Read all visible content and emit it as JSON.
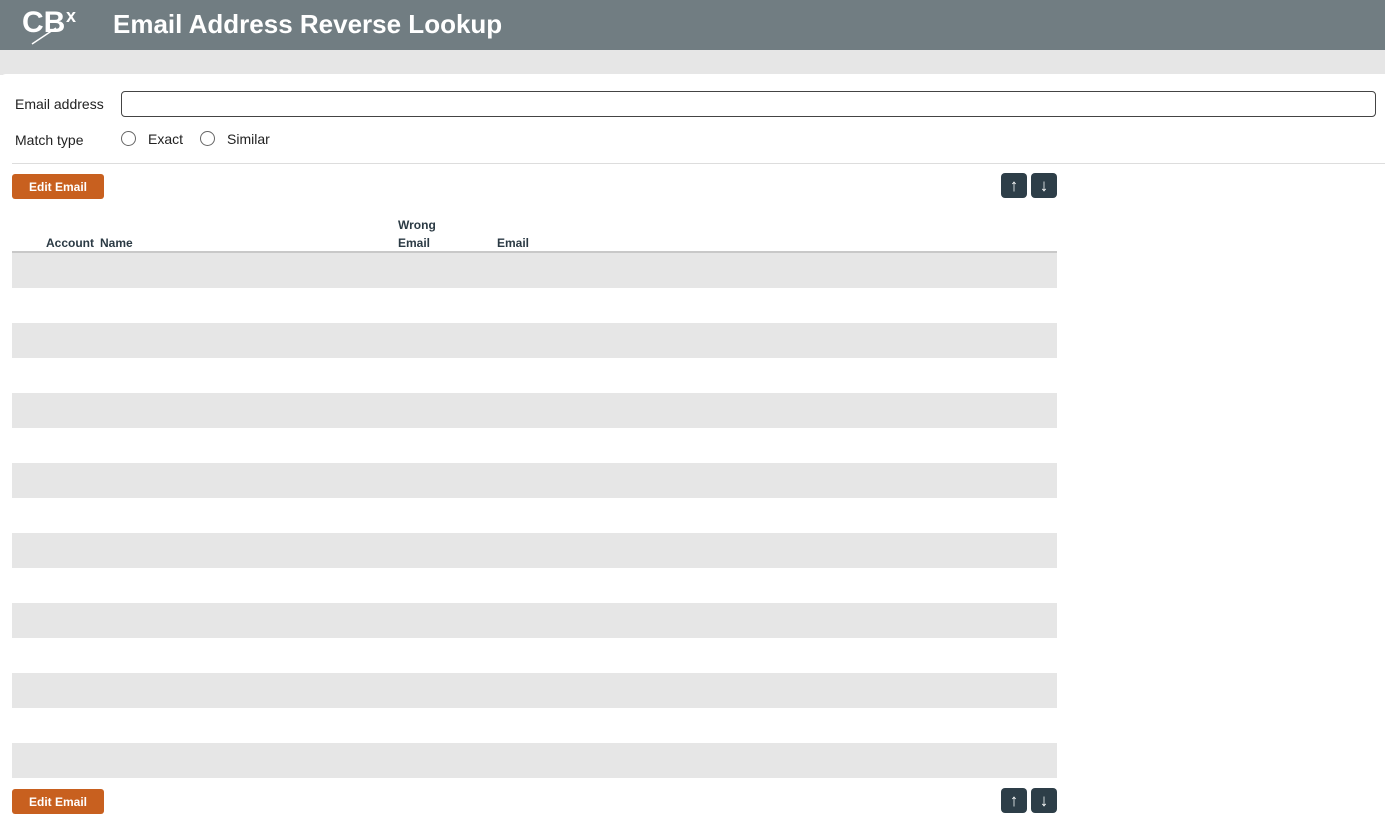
{
  "header": {
    "title": "Email Address Reverse Lookup",
    "logo_text": "CBX",
    "logo-icon": "cbx-logo"
  },
  "form": {
    "email_label": "Email address",
    "email_value": "",
    "match_label": "Match type",
    "options": [
      {
        "label": "Exact",
        "selected": false
      },
      {
        "label": "Similar",
        "selected": false
      }
    ]
  },
  "toolbar": {
    "edit_label": "Edit Email",
    "up_icon": "arrow-up-icon",
    "down_icon": "arrow-down-icon"
  },
  "table": {
    "columns": [
      "Account",
      "Name",
      "Wrong Email",
      "Email"
    ],
    "wrong_email_line1": "Wrong",
    "wrong_email_line2": "Email",
    "rows": []
  },
  "colors": {
    "header": "#717d82",
    "accent": "#c8601f",
    "nav_button": "#2d3e48",
    "stripe": "#e6e6e6"
  }
}
